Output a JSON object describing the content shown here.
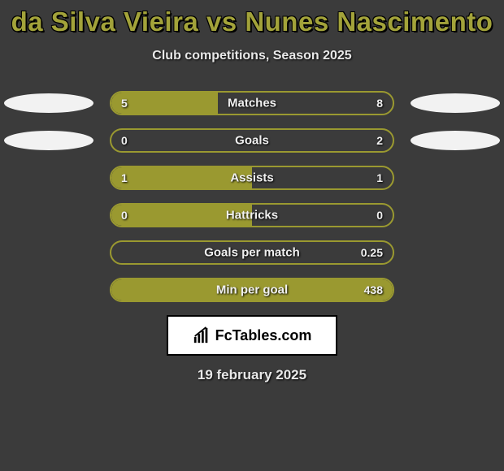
{
  "title": "da Silva Vieira vs Nunes Nascimento",
  "subtitle": "Club competitions, Season 2025",
  "title_color": "#a3a33a",
  "bar_border_color": "#9a9930",
  "bar_fill_color": "#9a9930",
  "background_color": "#3b3b3b",
  "text_color": "#f0f0f0",
  "badge_color": "#f2f2f2",
  "bars": [
    {
      "label": "Matches",
      "left": "5",
      "right": "8",
      "fill_pct": 38,
      "show_badges": true
    },
    {
      "label": "Goals",
      "left": "0",
      "right": "2",
      "fill_pct": 0,
      "show_badges": true
    },
    {
      "label": "Assists",
      "left": "1",
      "right": "1",
      "fill_pct": 50,
      "show_badges": false
    },
    {
      "label": "Hattricks",
      "left": "0",
      "right": "0",
      "fill_pct": 50,
      "show_badges": false
    },
    {
      "label": "Goals per match",
      "left": "",
      "right": "0.25",
      "fill_pct": 0,
      "show_badges": false
    },
    {
      "label": "Min per goal",
      "left": "",
      "right": "438",
      "fill_pct": 100,
      "show_badges": false
    }
  ],
  "logo": {
    "text": "FcTables.com"
  },
  "date": "19 february 2025"
}
